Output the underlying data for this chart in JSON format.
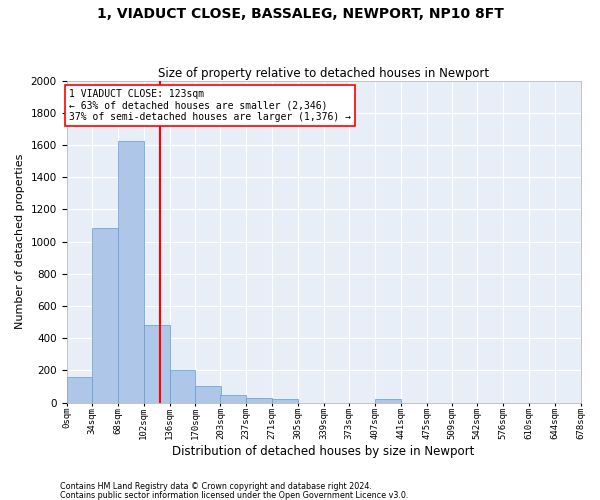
{
  "title": "1, VIADUCT CLOSE, BASSALEG, NEWPORT, NP10 8FT",
  "subtitle": "Size of property relative to detached houses in Newport",
  "xlabel": "Distribution of detached houses by size in Newport",
  "ylabel": "Number of detached properties",
  "bar_color": "#aec6e8",
  "bar_edgecolor": "#5a9fd4",
  "background_color": "#e8eef8",
  "grid_color": "#ffffff",
  "property_size": 123,
  "property_line_color": "red",
  "annotation_line1": "1 VIADUCT CLOSE: 123sqm",
  "annotation_line2": "← 63% of detached houses are smaller (2,346)",
  "annotation_line3": "37% of semi-detached houses are larger (1,376) →",
  "footnote1": "Contains HM Land Registry data © Crown copyright and database right 2024.",
  "footnote2": "Contains public sector information licensed under the Open Government Licence v3.0.",
  "bin_labels": [
    "0sqm",
    "34sqm",
    "68sqm",
    "102sqm",
    "136sqm",
    "170sqm",
    "203sqm",
    "237sqm",
    "271sqm",
    "305sqm",
    "339sqm",
    "373sqm",
    "407sqm",
    "441sqm",
    "475sqm",
    "509sqm",
    "542sqm",
    "576sqm",
    "610sqm",
    "644sqm",
    "678sqm"
  ],
  "bin_edges": [
    0,
    34,
    68,
    102,
    136,
    170,
    203,
    237,
    271,
    305,
    339,
    373,
    407,
    441,
    475,
    509,
    542,
    576,
    610,
    644,
    678
  ],
  "bar_heights": [
    160,
    1085,
    1625,
    480,
    200,
    100,
    45,
    30,
    20,
    0,
    0,
    0,
    20,
    0,
    0,
    0,
    0,
    0,
    0,
    0
  ],
  "ylim": [
    0,
    2000
  ],
  "yticks": [
    0,
    200,
    400,
    600,
    800,
    1000,
    1200,
    1400,
    1600,
    1800,
    2000
  ]
}
